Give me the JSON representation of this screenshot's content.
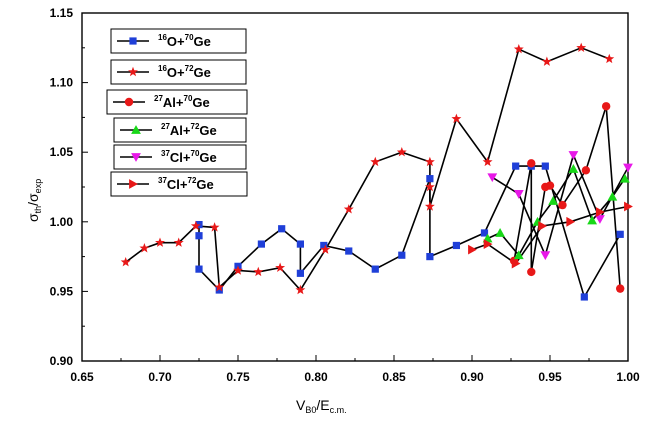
{
  "chart_data": {
    "type": "scatter",
    "xlabel_main": "V",
    "xlabel_sub": "B0",
    "xlabel_mid": "/E",
    "xlabel_sub2": "c.m.",
    "ylabel_sym1": "σ",
    "ylabel_sub1": "th",
    "ylabel_mid": "/σ",
    "ylabel_sub2": "exp",
    "xlim": [
      0.65,
      1.0
    ],
    "ylim": [
      0.9,
      1.15
    ],
    "xticks": [
      "0.65",
      "0.70",
      "0.75",
      "0.80",
      "0.85",
      "0.90",
      "0.95",
      "1.00"
    ],
    "yticks": [
      "0.90",
      "0.95",
      "1.00",
      "1.05",
      "1.10",
      "1.15"
    ],
    "series": [
      {
        "name": "16O+70Ge",
        "sup1": "16",
        "el1": "O",
        "sup2": "70",
        "el2": "Ge",
        "color": "#1f3fd8",
        "marker": "square",
        "x": [
          0.725,
          0.725,
          0.725,
          0.738,
          0.75,
          0.765,
          0.778,
          0.79,
          0.79,
          0.805,
          0.821,
          0.838,
          0.855,
          0.873,
          0.873,
          0.89,
          0.908,
          0.928,
          0.938,
          0.947,
          0.972,
          0.995
        ],
        "y": [
          0.998,
          0.99,
          0.966,
          0.951,
          0.968,
          0.984,
          0.995,
          0.984,
          0.963,
          0.983,
          0.979,
          0.966,
          0.976,
          1.031,
          0.975,
          0.983,
          0.992,
          1.04,
          1.04,
          1.04,
          0.946,
          0.991
        ]
      },
      {
        "name": "16O+72Ge",
        "sup1": "16",
        "el1": "O",
        "sup2": "72",
        "el2": "Ge",
        "color": "#e81818",
        "marker": "star",
        "x": [
          0.678,
          0.69,
          0.7,
          0.712,
          0.723,
          0.735,
          0.738,
          0.75,
          0.763,
          0.777,
          0.79,
          0.806,
          0.821,
          0.838,
          0.855,
          0.873,
          0.873,
          0.873,
          0.89,
          0.91,
          0.93,
          0.948,
          0.97,
          0.988
        ],
        "y": [
          0.971,
          0.981,
          0.985,
          0.985,
          0.997,
          0.996,
          0.953,
          0.965,
          0.964,
          0.967,
          0.951,
          0.98,
          1.009,
          1.043,
          1.05,
          1.043,
          1.025,
          1.011,
          1.074,
          1.043,
          1.124,
          1.115,
          1.125,
          1.117
        ]
      },
      {
        "name": "27Al+70Ge",
        "sup1": "27",
        "el1": "Al",
        "sup2": "70",
        "el2": "Ge",
        "color": "#e81818",
        "marker": "circle",
        "x": [
          0.927,
          0.938,
          0.938,
          0.947,
          0.95,
          0.958,
          0.973,
          0.986,
          0.995
        ],
        "y": [
          0.972,
          1.042,
          0.964,
          1.025,
          1.026,
          1.012,
          1.037,
          1.083,
          0.952
        ]
      },
      {
        "name": "27Al+72Ge",
        "sup1": "27",
        "el1": "Al",
        "sup2": "72",
        "el2": "Ge",
        "color": "#18d818",
        "marker": "triangle-up",
        "x": [
          0.91,
          0.918,
          0.93,
          0.942,
          0.952,
          0.965,
          0.977,
          0.99,
          0.998
        ],
        "y": [
          0.988,
          0.992,
          0.976,
          1.0,
          1.015,
          1.038,
          1.001,
          1.018,
          1.031
        ]
      },
      {
        "name": "37Cl+70Ge",
        "sup1": "37",
        "el1": "Cl",
        "sup2": "70",
        "el2": "Ge",
        "color": "#e818e8",
        "marker": "triangle-down",
        "x": [
          0.913,
          0.93,
          0.947,
          0.965,
          0.982,
          1.0
        ],
        "y": [
          1.032,
          1.02,
          0.976,
          1.048,
          1.002,
          1.039
        ]
      },
      {
        "name": "37Cl+72Ge",
        "sup1": "37",
        "el1": "Cl",
        "sup2": "72",
        "el2": "Ge",
        "color": "#e81818",
        "marker": "triangle-right",
        "x": [
          0.9,
          0.91,
          0.928,
          0.945,
          0.963,
          0.982,
          1.0
        ],
        "y": [
          0.98,
          0.984,
          0.97,
          0.997,
          1.0,
          1.007,
          1.011
        ]
      }
    ]
  }
}
